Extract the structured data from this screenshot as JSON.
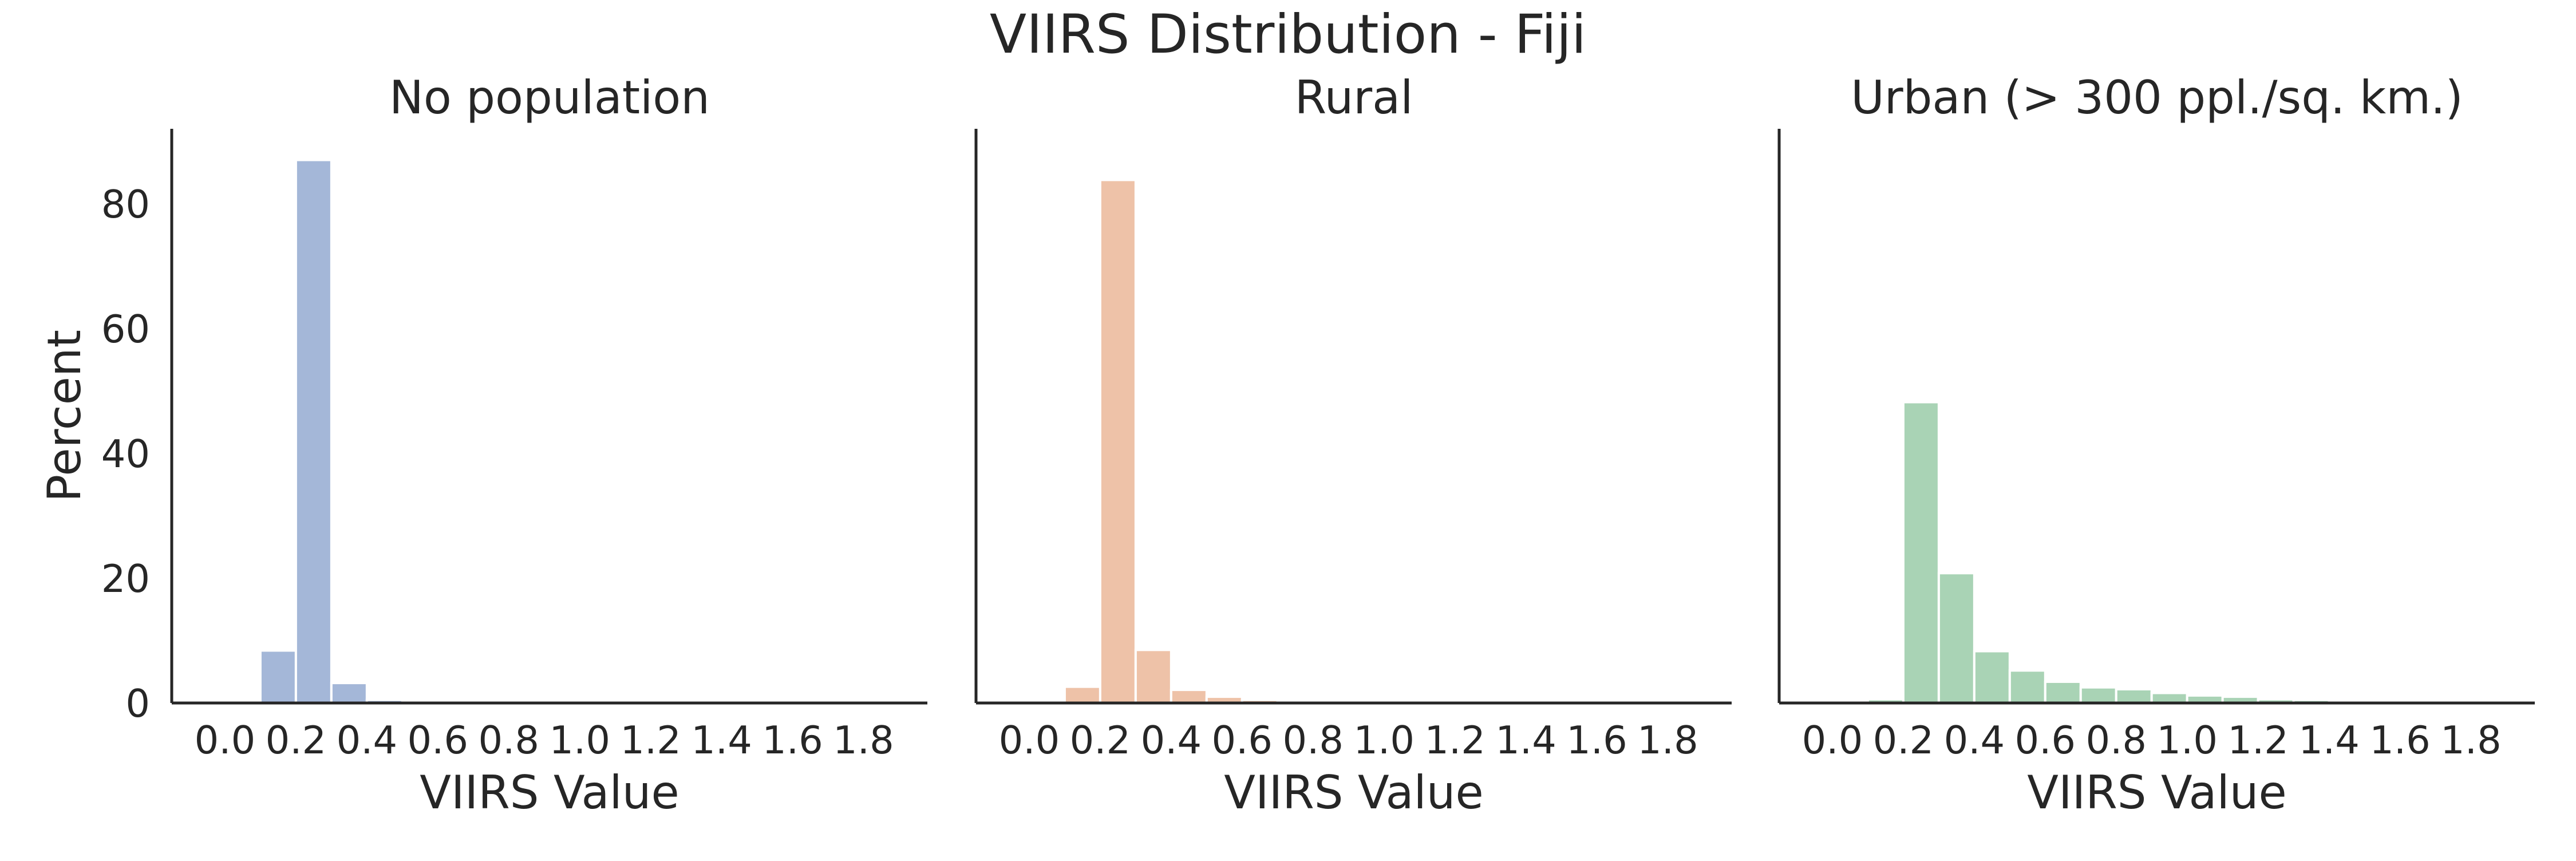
{
  "figure": {
    "title": "VIIRS Distribution - Fiji"
  },
  "colors": {
    "no_population": "#a4b7d8",
    "rural": "#eec2a8",
    "urban": "#a9d3b5",
    "axis": "#262626",
    "text": "#262626",
    "background": "#ffffff"
  },
  "chart_data": [
    {
      "type": "bar",
      "title": "No population",
      "xlabel": "VIIRS Value",
      "ylabel": "Percent",
      "xlim": [
        -0.15,
        1.98
      ],
      "ylim": [
        0,
        92
      ],
      "bin_width": 0.1,
      "bin_starts": [
        0.1,
        0.2,
        0.3,
        0.4
      ],
      "values": [
        8.4,
        87.0,
        3.2,
        0.5
      ],
      "x_ticks": [
        0.0,
        0.2,
        0.4,
        0.6,
        0.8,
        1.0,
        1.2,
        1.4,
        1.6,
        1.8
      ],
      "x_tick_labels": [
        "0.0",
        "0.2",
        "0.4",
        "0.6",
        "0.8",
        "1.0",
        "1.2",
        "1.4",
        "1.6",
        "1.8"
      ],
      "y_ticks": [
        0,
        20,
        40,
        60,
        80
      ],
      "y_tick_labels": [
        "0",
        "20",
        "40",
        "60",
        "80"
      ],
      "color": "#a4b7d8",
      "grid": false
    },
    {
      "type": "bar",
      "title": "Rural",
      "xlabel": "VIIRS Value",
      "ylabel": "",
      "xlim": [
        -0.15,
        1.98
      ],
      "ylim": [
        0,
        92
      ],
      "bin_width": 0.1,
      "bin_starts": [
        0.1,
        0.2,
        0.3,
        0.4,
        0.5,
        0.6,
        0.7
      ],
      "values": [
        2.6,
        83.8,
        8.5,
        2.1,
        1.0,
        0.5,
        0.2
      ],
      "x_ticks": [
        0.0,
        0.2,
        0.4,
        0.6,
        0.8,
        1.0,
        1.2,
        1.4,
        1.6,
        1.8
      ],
      "x_tick_labels": [
        "0.0",
        "0.2",
        "0.4",
        "0.6",
        "0.8",
        "1.0",
        "1.2",
        "1.4",
        "1.6",
        "1.8"
      ],
      "y_ticks": [
        0,
        20,
        40,
        60,
        80
      ],
      "y_tick_labels": [],
      "color": "#eec2a8",
      "grid": false
    },
    {
      "type": "bar",
      "title": "Urban (> 300 ppl./sq. km.)",
      "xlabel": "VIIRS Value",
      "ylabel": "",
      "xlim": [
        -0.15,
        1.98
      ],
      "ylim": [
        0,
        92
      ],
      "bin_width": 0.1,
      "bin_starts": [
        0.1,
        0.2,
        0.3,
        0.4,
        0.5,
        0.6,
        0.7,
        0.8,
        0.9,
        1.0,
        1.1,
        1.2,
        1.3,
        1.4,
        1.5,
        1.6,
        1.7,
        1.8
      ],
      "values": [
        0.6,
        48.2,
        20.8,
        8.3,
        5.2,
        3.4,
        2.5,
        2.2,
        1.6,
        1.2,
        1.0,
        0.6,
        0.5,
        0.3,
        0.2,
        0.2,
        0.1,
        0.4
      ],
      "x_ticks": [
        0.0,
        0.2,
        0.4,
        0.6,
        0.8,
        1.0,
        1.2,
        1.4,
        1.6,
        1.8
      ],
      "x_tick_labels": [
        "0.0",
        "0.2",
        "0.4",
        "0.6",
        "0.8",
        "1.0",
        "1.2",
        "1.4",
        "1.6",
        "1.8"
      ],
      "y_ticks": [
        0,
        20,
        40,
        60,
        80
      ],
      "y_tick_labels": [],
      "color": "#a9d3b5",
      "grid": false
    }
  ]
}
